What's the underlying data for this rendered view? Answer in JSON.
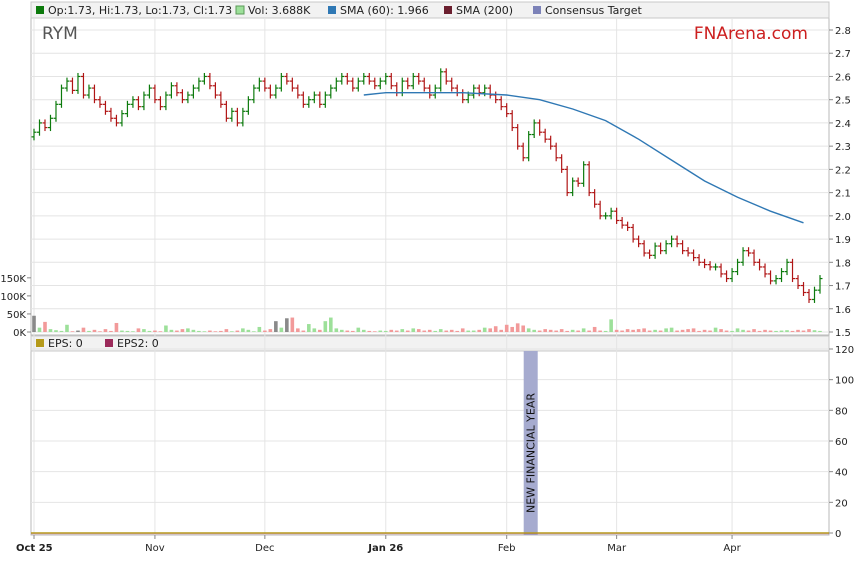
{
  "legend_top": {
    "ohlc": "Op:1.73, Hi:1.73, Lo:1.73, Cl:1.73",
    "vol": "Vol: 3.688K",
    "sma60": "SMA (60): 1.966",
    "sma200": "SMA (200)",
    "consensus": "Consensus Target"
  },
  "legend_bottom": {
    "eps": "EPS: 0",
    "eps2": "EPS2: 0"
  },
  "ticker": "RYM",
  "brand": "FNArena.com",
  "annotation": "NEW FINANCIAL YEAR",
  "colors": {
    "up": "#0c7a0c",
    "down": "#b01515",
    "sma60": "#2f78b4",
    "sma200": "#6b1f2f",
    "consensus": "#7c82b8",
    "vol_up": "#9de09a",
    "vol_down": "#f29a9a",
    "vol_neutral": "#8a8a8a",
    "eps": "#b59a1a",
    "eps2": "#9b2a5a",
    "brand": "#cc1f1f",
    "band": "#a6abcf"
  },
  "chart_data": [
    {
      "type": "ohlc",
      "price_axis": {
        "min": 1.5,
        "max": 2.8,
        "ticks": [
          "1.5",
          "1.6",
          "1.7",
          "1.8",
          "1.9",
          "2.0",
          "2.1",
          "2.2",
          "2.3",
          "2.4",
          "2.5",
          "2.6",
          "2.7",
          "2.8"
        ]
      },
      "volume_axis": {
        "ticks": [
          "0K",
          "50K",
          "100K",
          "150K"
        ],
        "max": 180
      },
      "x_labels": [
        "Oct 25",
        "Nov",
        "Dec",
        "Jan 26",
        "Feb",
        "Mar",
        "Apr"
      ],
      "month_starts": [
        0,
        22,
        42,
        64,
        86,
        106,
        127
      ],
      "closes": [
        2.36,
        2.4,
        2.38,
        2.42,
        2.48,
        2.55,
        2.58,
        2.54,
        2.6,
        2.52,
        2.55,
        2.5,
        2.48,
        2.45,
        2.42,
        2.4,
        2.44,
        2.48,
        2.5,
        2.47,
        2.52,
        2.55,
        2.5,
        2.47,
        2.52,
        2.56,
        2.53,
        2.5,
        2.52,
        2.55,
        2.58,
        2.6,
        2.56,
        2.52,
        2.48,
        2.42,
        2.45,
        2.4,
        2.45,
        2.5,
        2.55,
        2.58,
        2.55,
        2.52,
        2.55,
        2.6,
        2.58,
        2.55,
        2.52,
        2.48,
        2.5,
        2.52,
        2.48,
        2.52,
        2.55,
        2.58,
        2.6,
        2.58,
        2.55,
        2.58,
        2.6,
        2.58,
        2.56,
        2.58,
        2.6,
        2.56,
        2.53,
        2.58,
        2.56,
        2.6,
        2.58,
        2.55,
        2.52,
        2.55,
        2.62,
        2.58,
        2.55,
        2.53,
        2.5,
        2.52,
        2.55,
        2.53,
        2.55,
        2.52,
        2.5,
        2.47,
        2.44,
        2.38,
        2.3,
        2.25,
        2.35,
        2.4,
        2.36,
        2.33,
        2.3,
        2.25,
        2.2,
        2.1,
        2.15,
        2.14,
        2.22,
        2.1,
        2.05,
        2.0,
        2.0,
        2.02,
        1.98,
        1.96,
        1.95,
        1.9,
        1.88,
        1.84,
        1.83,
        1.87,
        1.85,
        1.88,
        1.9,
        1.88,
        1.85,
        1.84,
        1.82,
        1.8,
        1.79,
        1.78,
        1.78,
        1.75,
        1.73,
        1.76,
        1.8,
        1.85,
        1.84,
        1.8,
        1.78,
        1.75,
        1.72,
        1.73,
        1.76,
        1.8,
        1.73,
        1.7,
        1.67,
        1.64,
        1.68,
        1.73
      ],
      "sma60": [
        [
          60,
          2.52
        ],
        [
          64,
          2.53
        ],
        [
          70,
          2.53
        ],
        [
          78,
          2.53
        ],
        [
          86,
          2.52
        ],
        [
          92,
          2.5
        ],
        [
          98,
          2.46
        ],
        [
          104,
          2.41
        ],
        [
          110,
          2.33
        ],
        [
          116,
          2.24
        ],
        [
          122,
          2.15
        ],
        [
          128,
          2.08
        ],
        [
          134,
          2.02
        ],
        [
          140,
          1.97
        ]
      ],
      "volume_k": [
        45,
        12,
        28,
        8,
        5,
        3,
        20,
        2,
        4,
        12,
        3,
        6,
        2,
        8,
        3,
        25,
        4,
        3,
        2,
        10,
        8,
        3,
        4,
        2,
        18,
        6,
        4,
        8,
        10,
        6,
        3,
        2,
        4,
        2,
        3,
        8,
        2,
        4,
        10,
        6,
        2,
        14,
        4,
        8,
        30,
        12,
        38,
        40,
        10,
        4,
        22,
        10,
        6,
        30,
        40,
        10,
        6,
        4,
        3,
        12,
        6,
        3,
        2,
        4,
        3,
        6,
        4,
        8,
        4,
        10,
        8,
        4,
        6,
        3,
        8,
        4,
        6,
        3,
        10,
        4,
        4,
        6,
        12,
        10,
        16,
        6,
        20,
        14,
        24,
        18,
        10,
        6,
        4,
        8,
        6,
        4,
        8,
        3,
        6,
        4,
        10,
        4,
        14,
        4,
        3,
        35,
        6,
        4,
        8,
        6,
        8,
        10,
        4,
        6,
        4,
        10,
        12,
        4,
        6,
        8,
        10,
        3,
        6,
        4,
        12,
        8,
        4,
        3,
        10,
        6,
        4,
        8,
        3,
        6,
        4,
        3,
        4,
        5,
        3,
        6,
        4,
        8,
        5,
        3
      ],
      "volume_heights_note": ""
    },
    {
      "type": "line",
      "eps_axis": {
        "min": 0,
        "max": 120,
        "ticks": [
          "0",
          "20",
          "40",
          "60",
          "80",
          "100",
          "120"
        ]
      },
      "eps": 0,
      "eps2": 0
    }
  ]
}
